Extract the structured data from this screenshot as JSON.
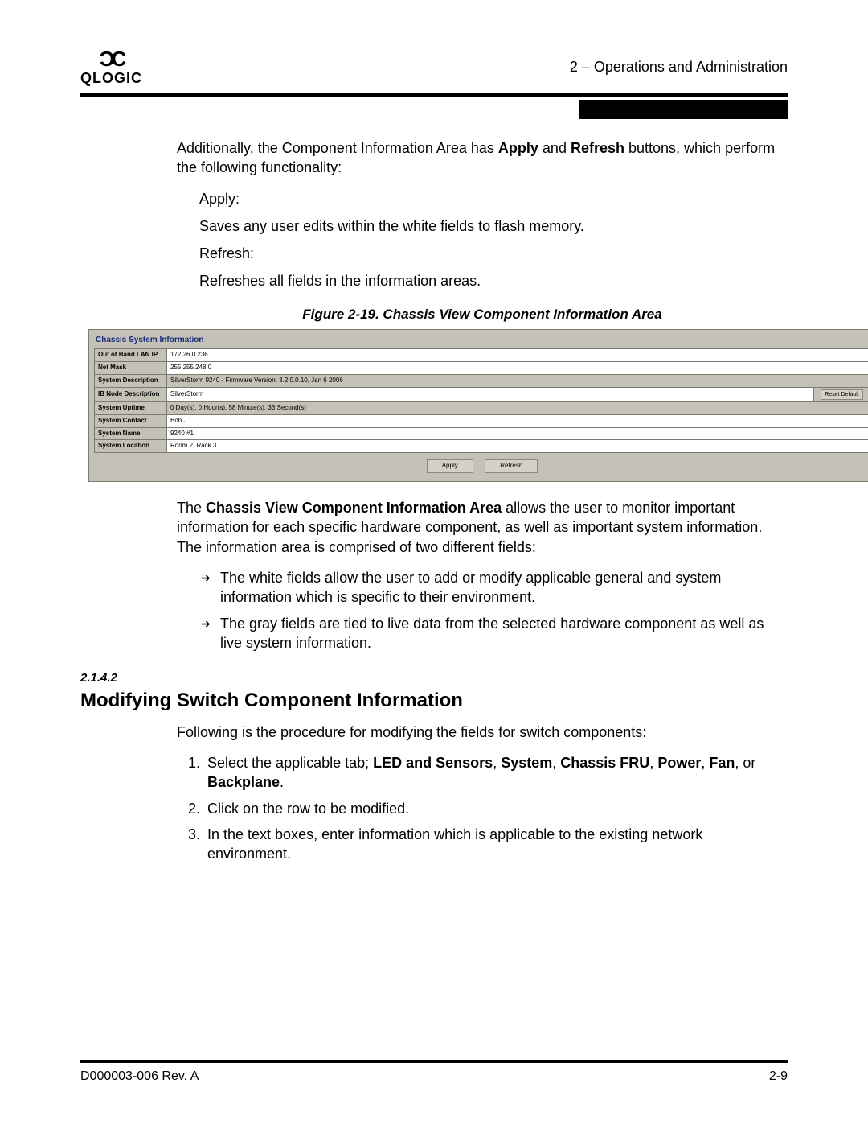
{
  "header": {
    "logo_text": "QLOGIC",
    "section_label": "2 – Operations and Administration"
  },
  "intro": {
    "p1a": "Additionally, the Component Information Area has ",
    "p1_bold1": "Apply",
    "p1b": " and ",
    "p1_bold2": "Refresh",
    "p1c": " buttons, which perform the following functionality:",
    "apply_label": "Apply:",
    "apply_desc": "Saves any user edits within the white fields to flash memory.",
    "refresh_label": "Refresh:",
    "refresh_desc": "Refreshes all fields in the information areas."
  },
  "figure": {
    "caption": "Figure 2-19. Chassis View Component Information Area",
    "panel_title": "Chassis System Information",
    "rows": [
      {
        "label": "Out of Band LAN IP",
        "value": "172.26.0.236",
        "white": true
      },
      {
        "label": "Net Mask",
        "value": "255.255.248.0",
        "white": true
      },
      {
        "label": "System Description",
        "value": "SilverStorm 9240 - Firmware Version: 3.2.0.0.10, Jan  6 2006",
        "white": false
      },
      {
        "label": "IB Node Description",
        "value": "SilverStorm",
        "white": true,
        "reset": true
      },
      {
        "label": "System Uptime",
        "value": "0 Day(s), 0 Hour(s), 58 Minute(s), 33 Second(s)",
        "white": false
      },
      {
        "label": "System Contact",
        "value": "Bob J.",
        "white": true
      },
      {
        "label": "System Name",
        "value": "9240 #1",
        "white": true
      },
      {
        "label": "System Location",
        "value": "Room 2, Rack 3",
        "white": true
      }
    ],
    "reset_default": "Reset Default",
    "apply_btn": "Apply",
    "refresh_btn": "Refresh"
  },
  "after_figure": {
    "p_a": "The ",
    "p_bold": "Chassis View Component Information Area",
    "p_b": " allows the user to monitor important information for each specific hardware component, as well as important system information. The information area is comprised of two different fields:",
    "b1": "The white fields allow the user to add or modify applicable general and system information which is specific to their environment.",
    "b2": "The gray fields are tied to live data from the selected hardware component as well as live system information."
  },
  "section": {
    "num": "2.1.4.2",
    "title": "Modifying Switch Component Information",
    "lead": "Following is the procedure for modifying the fields for switch components:",
    "ol1_a": "Select the applicable tab; ",
    "ol1_b1": "LED and Sensors",
    "ol1_c1": ", ",
    "ol1_b2": "System",
    "ol1_c2": ", ",
    "ol1_b3": "Chassis FRU",
    "ol1_c3": ", ",
    "ol1_b4": "Power",
    "ol1_c4": ", ",
    "ol1_b5": "Fan",
    "ol1_c5": ", or ",
    "ol1_b6": "Backplane",
    "ol1_c6": ".",
    "ol2": "Click on the row to be modified.",
    "ol3": "In the text boxes, enter information which is applicable to the existing network environment."
  },
  "footer": {
    "left": "D000003-006 Rev. A",
    "right": "2-9"
  },
  "colors": {
    "panel_bg": "#c4c2b6",
    "panel_border": "#7a7a70",
    "title_color": "#1a2a7a"
  }
}
